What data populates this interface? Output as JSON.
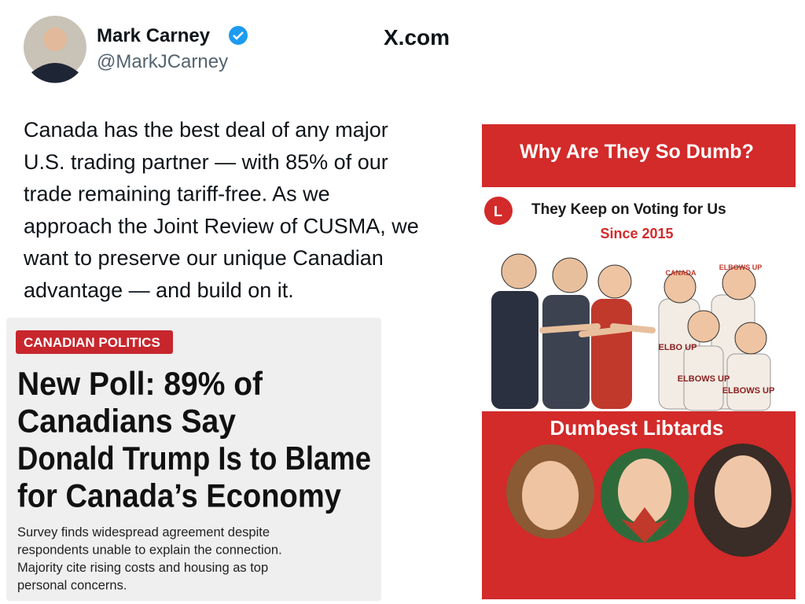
{
  "tweet": {
    "author_name": "Mark Carney",
    "handle": "@MarkJCarney",
    "source": "X.com",
    "text_lines": [
      "Canada has the best deal of any major",
      "U.S. trading partner — with 85% of our",
      "trade remaining tariff-free. As we",
      "approach the Joint Review of CUSMA, we",
      "want to preserve our unique Canadian",
      "advantage — and build on it."
    ]
  },
  "article": {
    "tag": "CANADIAN POLITICS",
    "headline_lines": [
      "New Poll: 89% of",
      "Canadians Say",
      "Donald Trump Is to Blame",
      "for Canada’s Economy"
    ],
    "summary_lines": [
      "Survey finds widespread agreement despite",
      "respondents unable to explain the connection.",
      "Majority cite rising costs and housing as top",
      "personal concerns."
    ]
  },
  "meme": {
    "header": "Why Are They So Dumb?",
    "cartoon_title": "They Keep on Voting for Us",
    "cartoon_subtitle": "Since 2015",
    "hat_labels": [
      "CANADA",
      "ELBOWS UP",
      "ELBO UP",
      "ELBOWS UP",
      "ELBOWS UP"
    ],
    "footer": "Dumbest Libtards"
  }
}
